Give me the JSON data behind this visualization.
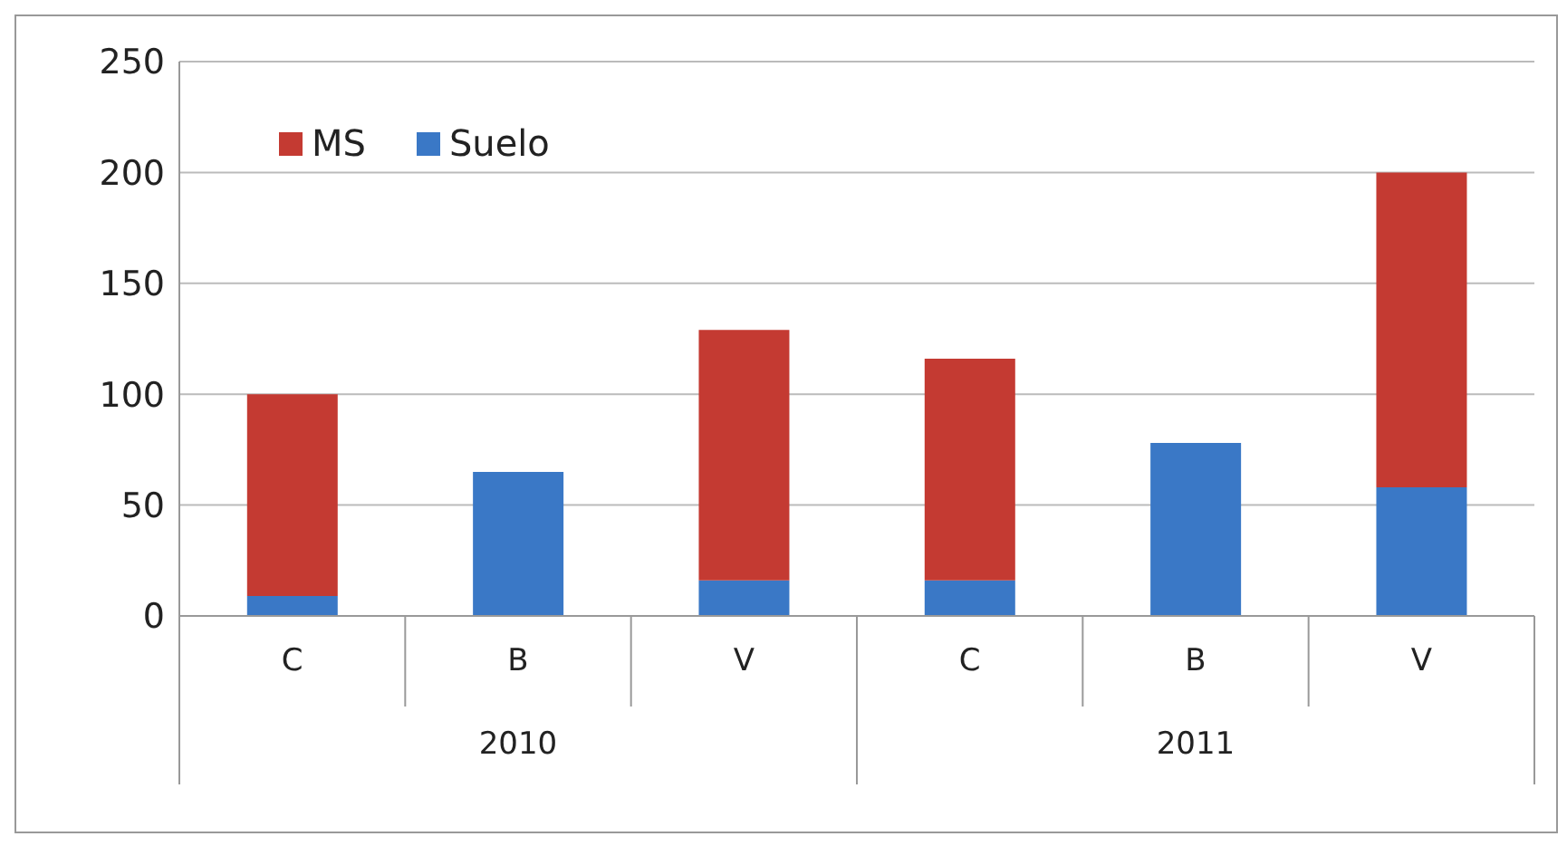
{
  "chart_data": {
    "type": "bar",
    "stacked": true,
    "categories": [
      "C",
      "B",
      "V",
      "C",
      "B",
      "V"
    ],
    "series": [
      {
        "name": "Suelo",
        "color": "#3a78c6",
        "values": [
          9,
          65,
          16,
          16,
          78,
          58
        ]
      },
      {
        "name": "MS",
        "color": "#c43a32",
        "values": [
          91,
          null,
          113,
          100,
          null,
          142
        ]
      }
    ],
    "annotations": [
      "2010",
      "2011"
    ],
    "ylim": [
      0,
      250
    ],
    "yticks": [
      0,
      50,
      100,
      150,
      200,
      250
    ],
    "grid": "y",
    "legend": "top left"
  }
}
